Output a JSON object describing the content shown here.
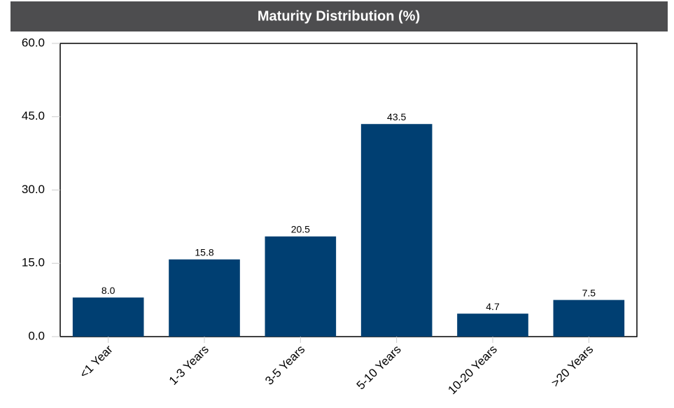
{
  "chart_data": {
    "type": "bar",
    "title": "Maturity Distribution (%)",
    "categories": [
      "<1 Year",
      "1-3 Years",
      "3-5 Years",
      "5-10 Years",
      "10-20 Years",
      ">20 Years"
    ],
    "values": [
      8.0,
      15.8,
      20.5,
      43.5,
      4.7,
      7.5
    ],
    "value_labels": [
      "8.0",
      "15.8",
      "20.5",
      "43.5",
      "4.7",
      "7.5"
    ],
    "color": "#003f72",
    "ylim": [
      0,
      60
    ],
    "yticks": [
      {
        "value": 0,
        "label": "0.0"
      },
      {
        "value": 15,
        "label": "15.0"
      },
      {
        "value": 30,
        "label": "30.0"
      },
      {
        "value": 45,
        "label": "45.0"
      },
      {
        "value": 60,
        "label": "60.0"
      }
    ],
    "grid": false
  }
}
